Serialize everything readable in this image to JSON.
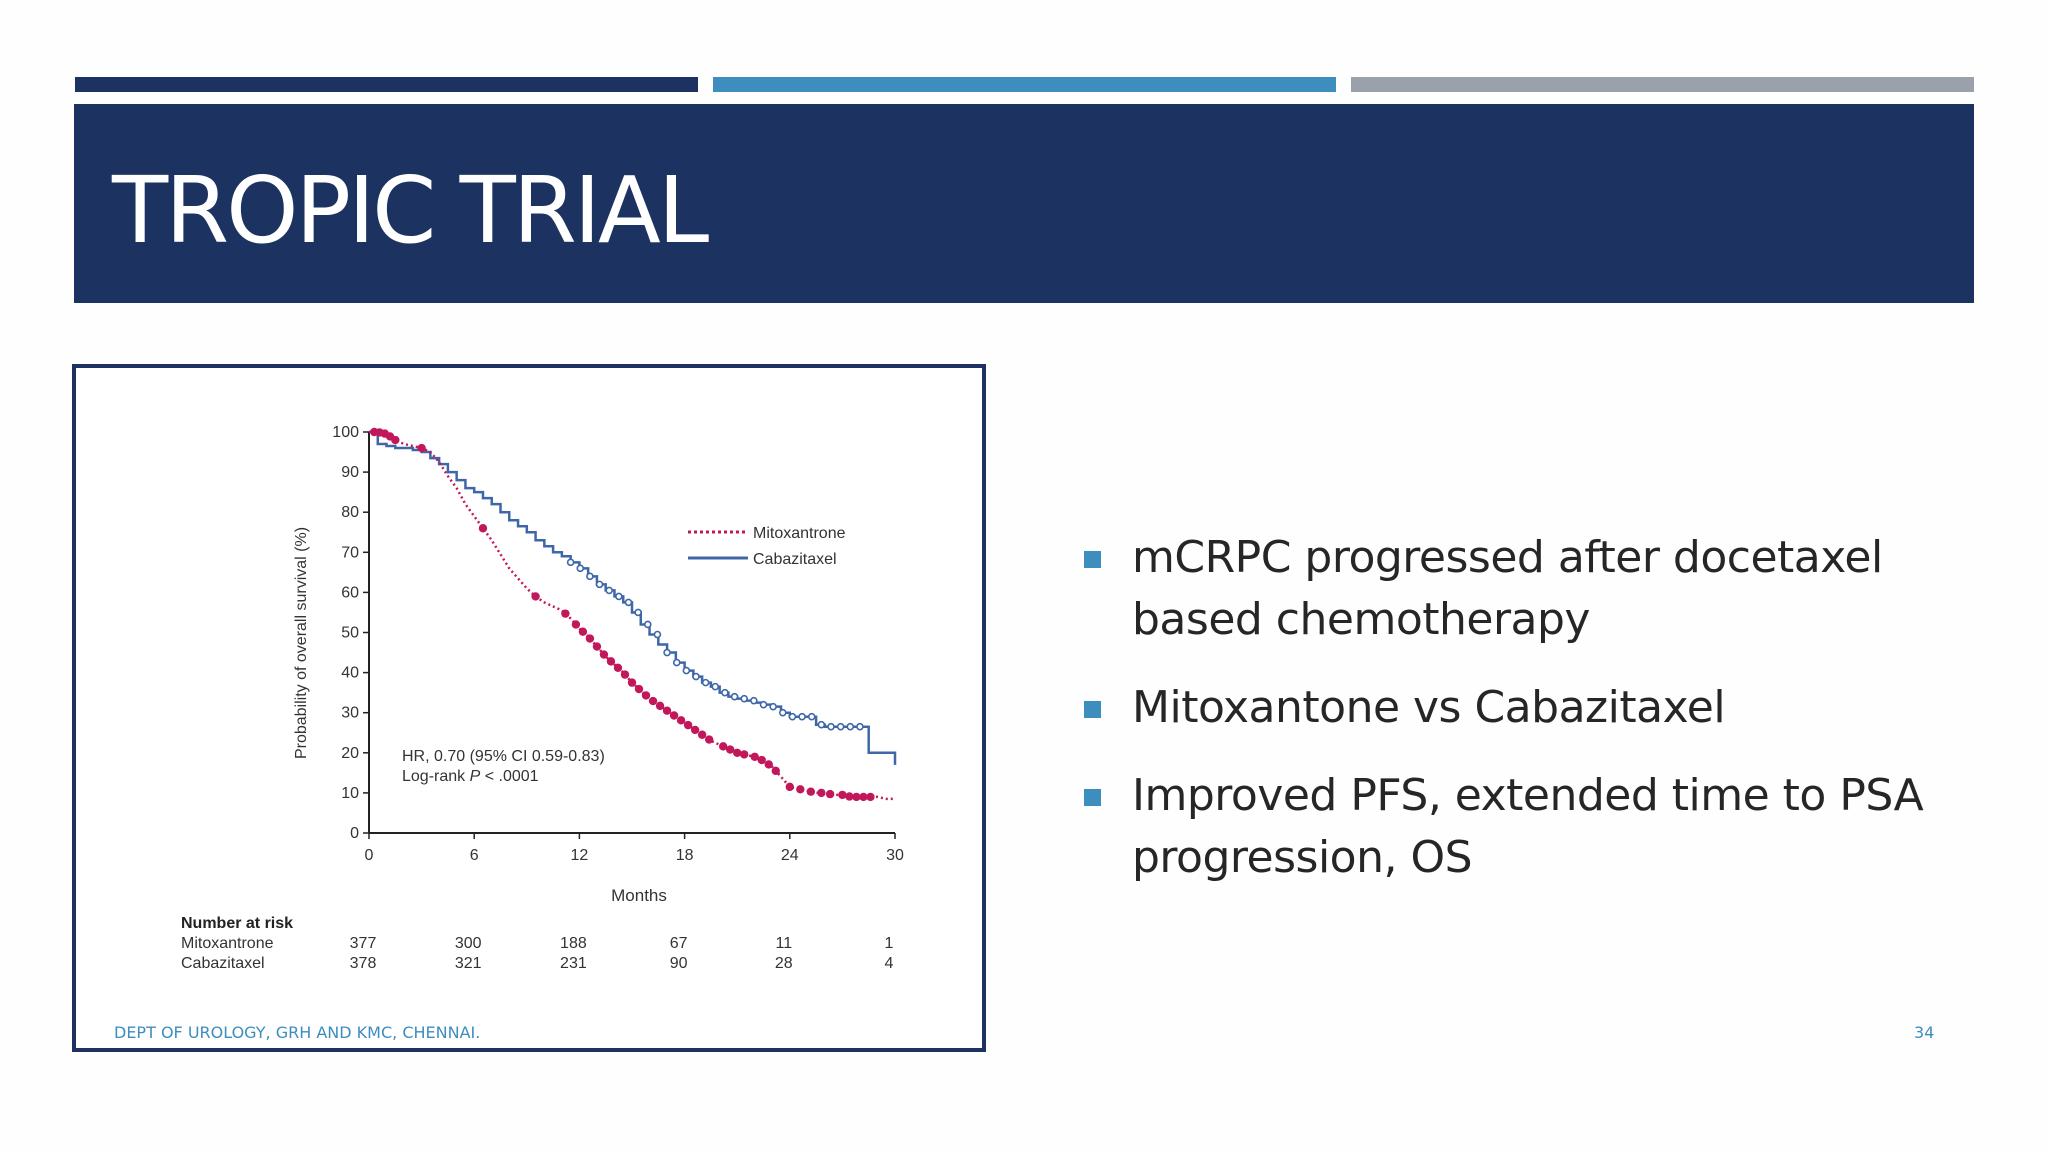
{
  "slide": {
    "title": "TROPIC TRIAL",
    "bullets": [
      "mCRPC progressed after docetaxel based chemotherapy",
      "Mitoxantone vs Cabazitaxel",
      "Improved PFS, extended time to PSA progression, OS"
    ],
    "footer": "DEPT OF UROLOGY, GRH AND KMC, CHENNAI.",
    "page_number": "34"
  },
  "colors": {
    "banner": "#1c3362",
    "accent_blue": "#3e8dbf",
    "accent_grey": "#9aa1aa",
    "mitoxantrone": "#c2185b",
    "cabazitaxel": "#3f67a8"
  },
  "chart_data": {
    "type": "line",
    "title": "",
    "xlabel": "Months",
    "ylabel": "Probability of overall survival (%)",
    "xlim": [
      0,
      30
    ],
    "ylim": [
      0,
      100
    ],
    "x_ticks": [
      0,
      6,
      12,
      18,
      24,
      30
    ],
    "y_ticks": [
      0,
      10,
      20,
      30,
      40,
      50,
      60,
      70,
      80,
      90,
      100
    ],
    "legend": "right",
    "annotation": {
      "hr_text": "HR, 0.70 (95% CI 0.59-0.83)",
      "logrank_prefix": "Log-rank ",
      "logrank_p": "P",
      "logrank_suffix": " < .0001"
    },
    "series": [
      {
        "name": "Mitoxantrone",
        "style": "dotted-censored",
        "x": [
          0,
          0.5,
          1,
          1.5,
          2,
          2.5,
          3,
          3.5,
          4,
          4.5,
          5,
          5.5,
          6,
          6.5,
          7,
          7.5,
          8,
          8.5,
          9,
          9.5,
          10,
          10.5,
          11,
          11.5,
          12,
          12.5,
          13,
          13.5,
          14,
          14.5,
          15,
          15.5,
          16,
          16.5,
          17,
          17.5,
          18,
          18.5,
          19,
          19.5,
          20,
          20.5,
          21,
          21.5,
          22,
          22.5,
          23,
          23.5,
          24,
          24.5,
          25,
          25.5,
          26,
          26.5,
          27,
          27.5,
          28,
          28.5,
          29,
          29.5,
          30
        ],
        "y": [
          100,
          100,
          99.5,
          98,
          97,
          96.5,
          96,
          95,
          92.5,
          89,
          86,
          82,
          79,
          76,
          73,
          69.5,
          66,
          63.5,
          61,
          59,
          57.5,
          56.5,
          55.5,
          53.5,
          51,
          49,
          46.5,
          44,
          42,
          40,
          37.5,
          35.5,
          33.5,
          32,
          30.5,
          29,
          27.5,
          26,
          24.5,
          23,
          22,
          21,
          20,
          19.5,
          19,
          18,
          16.5,
          14,
          11.5,
          11,
          10.5,
          10,
          10,
          9.5,
          9.5,
          9,
          9,
          9,
          9,
          8.5,
          8.5
        ],
        "censor_x": [
          0.3,
          0.6,
          0.9,
          1.2,
          1.5,
          3.0,
          6.5,
          9.5,
          11.2,
          11.8,
          12.2,
          12.6,
          13.0,
          13.4,
          13.8,
          14.2,
          14.6,
          15.0,
          15.4,
          15.8,
          16.2,
          16.6,
          17.0,
          17.4,
          17.8,
          18.2,
          18.6,
          19.0,
          19.4,
          20.2,
          20.6,
          21.0,
          21.4,
          22.0,
          22.4,
          22.8,
          23.2,
          24.0,
          24.6,
          25.2,
          25.8,
          26.3,
          27.0,
          27.4,
          27.8,
          28.2,
          28.6
        ]
      },
      {
        "name": "Cabazitaxel",
        "style": "solid-censored",
        "x": [
          0,
          0.5,
          1,
          1.5,
          2,
          2.5,
          3,
          3.5,
          4,
          4.5,
          5,
          5.5,
          6,
          6.5,
          7,
          7.5,
          8,
          8.5,
          9,
          9.5,
          10,
          10.5,
          11,
          11.5,
          12,
          12.5,
          13,
          13.5,
          14,
          14.5,
          15,
          15.5,
          16,
          16.5,
          17,
          17.5,
          18,
          18.5,
          19,
          19.5,
          20,
          20.5,
          21,
          21.5,
          22,
          22.5,
          23,
          23.5,
          24,
          24.5,
          25,
          25.5,
          26,
          26.5,
          27,
          27.5,
          28,
          28.5,
          29,
          29.5,
          30
        ],
        "y": [
          100,
          97,
          96.5,
          96,
          96,
          95.5,
          95,
          93.5,
          92,
          90,
          88,
          86,
          85,
          83.5,
          82,
          80,
          78,
          76.5,
          75,
          73,
          71.5,
          70,
          69,
          67.5,
          66,
          64,
          62,
          60.5,
          59,
          57.5,
          55,
          52,
          49.5,
          47,
          45,
          42.5,
          40.5,
          39,
          37.5,
          36.5,
          35,
          34,
          33.5,
          33,
          32.5,
          32,
          31.5,
          30,
          29,
          29,
          29,
          27,
          26.5,
          26.5,
          26.5,
          26.5,
          26.5,
          20,
          20,
          20,
          17
        ]
      }
    ],
    "number_at_risk": {
      "heading": "Number at risk",
      "rows": [
        {
          "name": "Mitoxantrone",
          "values": [
            "377",
            "300",
            "188",
            "67",
            "11",
            "1"
          ]
        },
        {
          "name": "Cabazitaxel",
          "values": [
            "378",
            "321",
            "231",
            "90",
            "28",
            "4"
          ]
        }
      ]
    }
  }
}
